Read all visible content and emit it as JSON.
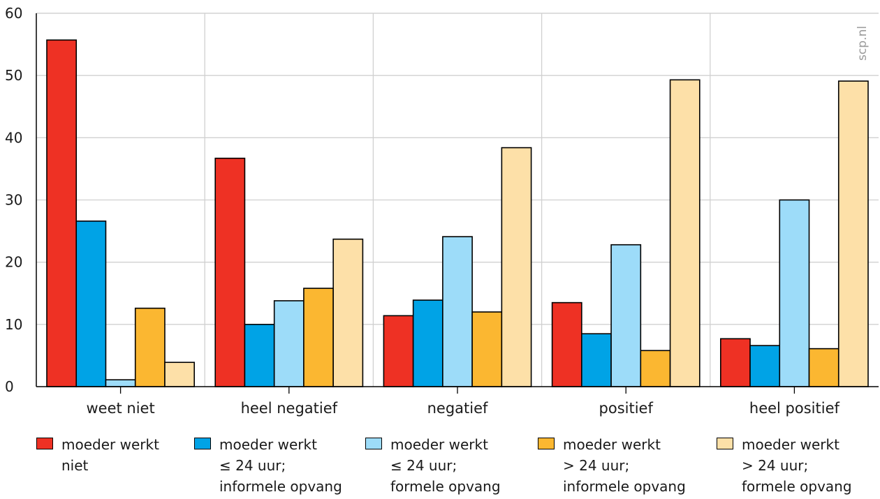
{
  "chart_data": {
    "type": "bar",
    "title": "",
    "xlabel": "",
    "ylabel": "",
    "ylim": [
      0,
      60
    ],
    "yticks": [
      "0",
      "10",
      "20",
      "30",
      "40",
      "50",
      "60"
    ],
    "categories": [
      "weet niet",
      "heel negatief",
      "negatief",
      "positief",
      "heel positief"
    ],
    "series": [
      {
        "name": "moeder werkt niet",
        "legend_lines": [
          "moeder werkt",
          "niet"
        ],
        "color": "#ee3124",
        "values": [
          55.7,
          36.7,
          11.4,
          13.5,
          7.7
        ]
      },
      {
        "name": "moeder werkt ≤ 24 uur; informele opvang",
        "legend_lines": [
          "moeder werkt",
          "≤ 24 uur;",
          "informele opvang"
        ],
        "color": "#00a3e6",
        "values": [
          26.6,
          10.0,
          13.9,
          8.5,
          6.6
        ]
      },
      {
        "name": "moeder werkt ≤ 24 uur; formele opvang",
        "legend_lines": [
          "moeder werkt",
          "≤ 24 uur;",
          "formele opvang"
        ],
        "color": "#9ddcf9",
        "values": [
          1.1,
          13.8,
          24.1,
          22.8,
          30.0
        ]
      },
      {
        "name": "moeder werkt > 24 uur; informele opvang",
        "legend_lines": [
          "moeder werkt",
          "> 24 uur;",
          "informele opvang"
        ],
        "color": "#fbb731",
        "values": [
          12.6,
          15.8,
          12.0,
          5.8,
          6.1
        ]
      },
      {
        "name": "moeder werkt > 24 uur; formele opvang",
        "legend_lines": [
          "moeder werkt",
          "> 24 uur;",
          "formele opvang"
        ],
        "color": "#fde0a8",
        "values": [
          3.9,
          23.7,
          38.4,
          49.3,
          49.1
        ]
      }
    ],
    "grid": true,
    "legend_position": "bottom"
  },
  "watermark": "scp.nl"
}
